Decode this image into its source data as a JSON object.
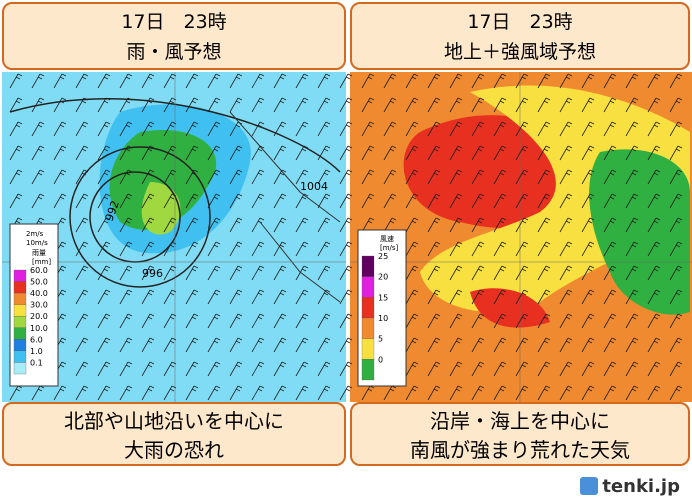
{
  "panels": [
    {
      "header": {
        "line1": "17日　23時",
        "line2": "雨・風予想"
      },
      "legend": {
        "title": "雨量",
        "unit": "[mm]",
        "wind_scale": [
          "2m/s",
          "10m/s"
        ],
        "levels": [
          {
            "label": "60.0",
            "color": "#e020e0"
          },
          {
            "label": "50.0",
            "color": "#e83020"
          },
          {
            "label": "40.0",
            "color": "#f08a30"
          },
          {
            "label": "30.0",
            "color": "#f8e040"
          },
          {
            "label": "20.0",
            "color": "#a0d840"
          },
          {
            "label": "10.0",
            "color": "#30b040"
          },
          {
            "label": "6.0",
            "color": "#2080e0"
          },
          {
            "label": "1.0",
            "color": "#40c0f0"
          },
          {
            "label": "0.1",
            "color": "#a8ecf8"
          }
        ]
      },
      "isobars": [
        "992",
        "996",
        "1004"
      ],
      "caption": {
        "line1": "北部や山地沿いを中心に",
        "line2": "大雨の恐れ"
      }
    },
    {
      "header": {
        "line1": "17日　23時",
        "line2": "地上＋強風域予想"
      },
      "legend": {
        "title": "風速",
        "unit": "[m/s]",
        "levels": [
          {
            "label": "25",
            "color": "#600060"
          },
          {
            "label": "20",
            "color": "#e020e0"
          },
          {
            "label": "15",
            "color": "#e83020"
          },
          {
            "label": "10",
            "color": "#f08a30"
          },
          {
            "label": "5",
            "color": "#f8e040"
          },
          {
            "label": "0",
            "color": "#30b040"
          }
        ]
      },
      "caption": {
        "line1": "沿岸・海上を中心に",
        "line2": "南風が強まり荒れた天気"
      }
    }
  ],
  "logo": "tenki.jp"
}
